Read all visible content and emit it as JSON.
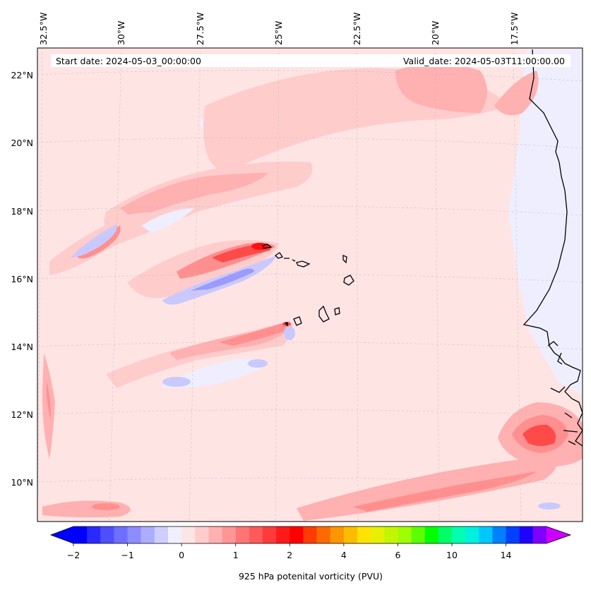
{
  "header": {
    "start_date": "Start date: 2024-05-03_00:00:00",
    "valid_date": "Valid_date: 2024-05-03T11:00:00.00"
  },
  "map": {
    "variable": "925 hPa potenital vorticity (PVU)",
    "lon_labels": [
      "32.5°W",
      "30°W",
      "27.5°W",
      "25°W",
      "22.5°W",
      "20°W",
      "17.5°W"
    ],
    "lat_labels": [
      "22°N",
      "20°N",
      "18°N",
      "16°N",
      "14°N",
      "12°N",
      "10°N"
    ]
  },
  "colorbar": {
    "title": "925 hPa potenital vorticity (PVU)",
    "ticks": [
      "−2",
      "−1",
      "0",
      "1",
      "2",
      "4",
      "6",
      "10",
      "14"
    ],
    "colors": [
      "#0000ff",
      "#2a2aff",
      "#4f4fff",
      "#6f6fff",
      "#8d8dff",
      "#adadff",
      "#cfcfff",
      "#efefff",
      "#ffe4e4",
      "#ffcccc",
      "#ffb0b0",
      "#ff9595",
      "#ff7575",
      "#ff5a5a",
      "#ff3a3a",
      "#ff1a1a",
      "#ff0000",
      "#ff3c00",
      "#ff6a00",
      "#ff9500",
      "#ffbb00",
      "#ffe200",
      "#e6f000",
      "#c4f500",
      "#9dff00",
      "#5cff00",
      "#00ff00",
      "#00ff66",
      "#00ffb0",
      "#00f0e0",
      "#00c8ff",
      "#0080ff",
      "#0040ff",
      "#2000ff",
      "#8000ff"
    ],
    "under_color": "#0000ff",
    "over_color": "#cc00ff"
  },
  "palette": {
    "background_pv": "#ffe4e4",
    "light_pink": "#ffcccc",
    "pink": "#ffb0b0",
    "salmon": "#ff8f8f",
    "red": "#ff4a4a",
    "deep_red": "#ff0f0f",
    "light_blue": "#eeeeff",
    "blue": "#c9c9ff",
    "mid_blue": "#9a9aff",
    "coast": "#000000"
  }
}
